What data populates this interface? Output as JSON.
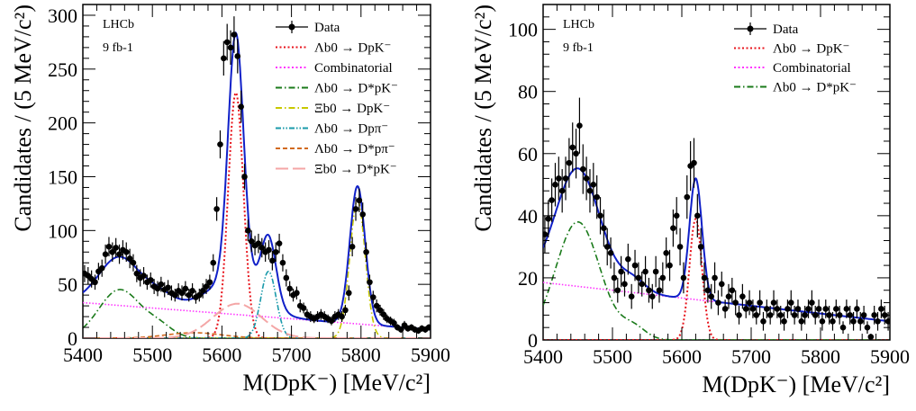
{
  "chart_data": [
    {
      "type": "line",
      "panel": "left",
      "label": "LHCb",
      "luminosity": "9 fb-1",
      "xlabel": "M(DpK⁻) [MeV/c²]",
      "ylabel": "Candidates / (5 MeV/c²)",
      "xlim": [
        5400,
        5900
      ],
      "ylim": [
        0,
        310
      ],
      "xticks": [
        5400,
        5500,
        5600,
        5700,
        5800,
        5900
      ],
      "yticks": [
        0,
        50,
        100,
        150,
        200,
        250,
        300
      ],
      "legend_position": "top-right",
      "legend": [
        {
          "name": "Data",
          "style": "data",
          "color": "#000000"
        },
        {
          "name": "Λb0 → DpK⁻",
          "style": "dotted",
          "color": "#e8141c"
        },
        {
          "name": "Combinatorial",
          "style": "dotted",
          "color": "#ff33ff"
        },
        {
          "name": "Λb0 → D*pK⁻",
          "style": "dashdot",
          "color": "#1a7a1a"
        },
        {
          "name": "Ξb0 → DpK⁻",
          "style": "dashdot",
          "color": "#c8c800"
        },
        {
          "name": "Λb0 → Dpπ⁻",
          "style": "dashdotdot",
          "color": "#1a9aaa"
        },
        {
          "name": "Λb0 → D*pπ⁻",
          "style": "dashed",
          "color": "#d2691e"
        },
        {
          "name": "Ξb0 → D*pK⁻",
          "style": "longdash",
          "color": "#f4a6a6"
        }
      ],
      "data_points": {
        "x": [
          5402.5,
          5407.5,
          5412.5,
          5417.5,
          5422.5,
          5427.5,
          5432.5,
          5437.5,
          5442.5,
          5447.5,
          5452.5,
          5457.5,
          5462.5,
          5467.5,
          5472.5,
          5477.5,
          5482.5,
          5487.5,
          5492.5,
          5497.5,
          5502.5,
          5507.5,
          5512.5,
          5517.5,
          5522.5,
          5527.5,
          5532.5,
          5537.5,
          5542.5,
          5547.5,
          5552.5,
          5557.5,
          5562.5,
          5567.5,
          5572.5,
          5577.5,
          5582.5,
          5587.5,
          5592.5,
          5597.5,
          5602.5,
          5607.5,
          5612.5,
          5617.5,
          5622.5,
          5627.5,
          5632.5,
          5637.5,
          5642.5,
          5647.5,
          5652.5,
          5657.5,
          5662.5,
          5667.5,
          5672.5,
          5677.5,
          5682.5,
          5687.5,
          5692.5,
          5697.5,
          5702.5,
          5707.5,
          5712.5,
          5717.5,
          5722.5,
          5727.5,
          5732.5,
          5737.5,
          5742.5,
          5747.5,
          5752.5,
          5757.5,
          5762.5,
          5767.5,
          5772.5,
          5777.5,
          5782.5,
          5787.5,
          5792.5,
          5797.5,
          5802.5,
          5807.5,
          5812.5,
          5817.5,
          5822.5,
          5827.5,
          5832.5,
          5837.5,
          5842.5,
          5847.5,
          5852.5,
          5857.5,
          5862.5,
          5867.5,
          5872.5,
          5877.5,
          5882.5,
          5887.5,
          5892.5,
          5897.5
        ],
        "y": [
          60,
          58,
          55,
          52,
          62,
          65,
          78,
          85,
          80,
          84,
          78,
          82,
          80,
          74,
          70,
          60,
          56,
          58,
          52,
          54,
          48,
          46,
          50,
          45,
          47,
          42,
          40,
          44,
          42,
          46,
          40,
          44,
          38,
          40,
          44,
          48,
          52,
          70,
          120,
          180,
          260,
          275,
          270,
          282,
          262,
          215,
          150,
          100,
          90,
          86,
          88,
          84,
          80,
          82,
          72,
          80,
          88,
          70,
          56,
          46,
          40,
          42,
          30,
          28,
          22,
          20,
          18,
          20,
          22,
          20,
          18,
          16,
          20,
          22,
          20,
          26,
          42,
          85,
          120,
          128,
          115,
          80,
          52,
          38,
          30,
          26,
          22,
          18,
          16,
          14,
          10,
          8,
          12,
          9,
          10,
          8,
          7,
          9,
          8,
          10
        ],
        "yerr": [
          8,
          8,
          8,
          7,
          8,
          8,
          9,
          9,
          9,
          9,
          9,
          9,
          9,
          9,
          8,
          8,
          8,
          8,
          7,
          7,
          7,
          7,
          7,
          7,
          7,
          7,
          6,
          7,
          7,
          7,
          6,
          7,
          6,
          6,
          7,
          7,
          7,
          8,
          11,
          13,
          16,
          17,
          16,
          17,
          16,
          15,
          12,
          10,
          10,
          9,
          9,
          9,
          9,
          9,
          9,
          9,
          9,
          8,
          8,
          7,
          6,
          6,
          6,
          5,
          5,
          5,
          4,
          5,
          5,
          5,
          4,
          4,
          5,
          5,
          5,
          5,
          7,
          9,
          11,
          11,
          11,
          9,
          7,
          6,
          6,
          5,
          5,
          4,
          4,
          4,
          3,
          3,
          4,
          3,
          3,
          3,
          3,
          3,
          3,
          3
        ]
      }
    },
    {
      "type": "line",
      "panel": "right",
      "label": "LHCb",
      "luminosity": "9 fb-1",
      "xlabel": "M(DpK⁻) [MeV/c²]",
      "ylabel": "Candidates / (5 MeV/c²)",
      "xlim": [
        5400,
        5900
      ],
      "ylim": [
        0,
        108
      ],
      "xticks": [
        5400,
        5500,
        5600,
        5700,
        5800,
        5900
      ],
      "yticks": [
        0,
        20,
        40,
        60,
        80,
        100
      ],
      "legend_position": "top-right",
      "legend": [
        {
          "name": "Data",
          "style": "data",
          "color": "#000000"
        },
        {
          "name": "Λb0 → DpK⁻",
          "style": "dotted",
          "color": "#e8141c"
        },
        {
          "name": "Combinatorial",
          "style": "dotted",
          "color": "#ff33ff"
        },
        {
          "name": "Λb0 → D*pK⁻",
          "style": "dashdot",
          "color": "#1a7a1a"
        }
      ],
      "data_points": {
        "x": [
          5402.5,
          5407.5,
          5412.5,
          5417.5,
          5422.5,
          5427.5,
          5432.5,
          5437.5,
          5442.5,
          5447.5,
          5452.5,
          5457.5,
          5462.5,
          5467.5,
          5472.5,
          5477.5,
          5482.5,
          5487.5,
          5492.5,
          5497.5,
          5502.5,
          5507.5,
          5512.5,
          5517.5,
          5522.5,
          5527.5,
          5532.5,
          5537.5,
          5542.5,
          5547.5,
          5552.5,
          5557.5,
          5562.5,
          5567.5,
          5572.5,
          5577.5,
          5582.5,
          5587.5,
          5592.5,
          5597.5,
          5602.5,
          5607.5,
          5612.5,
          5617.5,
          5622.5,
          5627.5,
          5632.5,
          5637.5,
          5642.5,
          5647.5,
          5652.5,
          5657.5,
          5662.5,
          5667.5,
          5672.5,
          5677.5,
          5682.5,
          5687.5,
          5692.5,
          5697.5,
          5702.5,
          5707.5,
          5712.5,
          5717.5,
          5722.5,
          5727.5,
          5732.5,
          5737.5,
          5742.5,
          5747.5,
          5752.5,
          5757.5,
          5762.5,
          5767.5,
          5772.5,
          5777.5,
          5782.5,
          5787.5,
          5792.5,
          5797.5,
          5802.5,
          5807.5,
          5812.5,
          5817.5,
          5822.5,
          5827.5,
          5832.5,
          5837.5,
          5842.5,
          5847.5,
          5852.5,
          5857.5,
          5862.5,
          5867.5,
          5872.5,
          5877.5,
          5882.5,
          5887.5,
          5892.5,
          5897.5
        ],
        "y": [
          34,
          39,
          45,
          50,
          52,
          48,
          52,
          57,
          62,
          60,
          69,
          55,
          52,
          48,
          50,
          46,
          40,
          36,
          30,
          28,
          20,
          16,
          22,
          18,
          26,
          14,
          24,
          20,
          18,
          22,
          16,
          14,
          22,
          16,
          20,
          28,
          24,
          36,
          40,
          30,
          20,
          46,
          56,
          57,
          40,
          30,
          20,
          16,
          14,
          20,
          12,
          18,
          10,
          14,
          16,
          12,
          8,
          14,
          10,
          12,
          10,
          8,
          12,
          6,
          10,
          8,
          12,
          10,
          8,
          6,
          10,
          12,
          8,
          10,
          6,
          8,
          10,
          12,
          8,
          10,
          6,
          10,
          8,
          6,
          10,
          8,
          4,
          10,
          8,
          6,
          10,
          6,
          8,
          4,
          1,
          8,
          6,
          10,
          8,
          6
        ],
        "yerr": [
          6,
          6,
          7,
          7,
          7,
          7,
          7,
          8,
          8,
          8,
          9,
          8,
          7,
          7,
          7,
          7,
          6,
          6,
          6,
          5,
          5,
          4,
          5,
          4,
          5,
          4,
          5,
          5,
          4,
          5,
          4,
          4,
          5,
          4,
          5,
          5,
          5,
          6,
          6,
          6,
          5,
          7,
          8,
          8,
          7,
          6,
          5,
          4,
          4,
          5,
          4,
          4,
          3,
          4,
          4,
          4,
          3,
          4,
          3,
          4,
          3,
          3,
          4,
          3,
          3,
          3,
          4,
          3,
          3,
          3,
          3,
          4,
          3,
          3,
          3,
          3,
          3,
          4,
          3,
          3,
          3,
          3,
          3,
          3,
          3,
          3,
          2,
          3,
          3,
          3,
          3,
          3,
          3,
          2,
          1,
          3,
          3,
          3,
          3,
          3
        ]
      }
    }
  ]
}
